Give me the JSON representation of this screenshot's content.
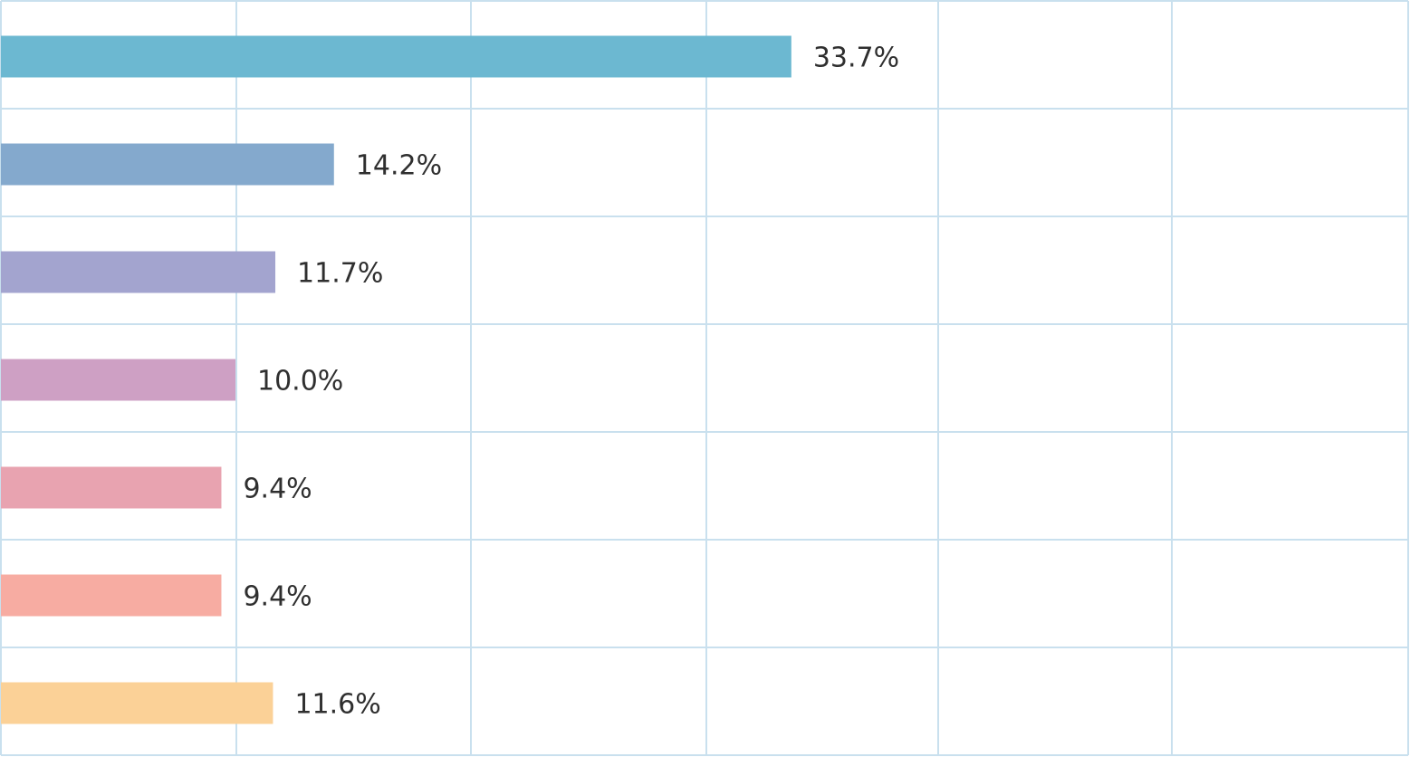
{
  "chart_data": {
    "type": "bar",
    "orientation": "horizontal",
    "categories": [
      "",
      "",
      "",
      "",
      "",
      "",
      ""
    ],
    "values": [
      33.7,
      14.2,
      11.7,
      10.0,
      9.4,
      9.4,
      11.6
    ],
    "labels": [
      "33.7%",
      "14.2%",
      "11.7%",
      "10.0%",
      "9.4%",
      "9.4%",
      "11.6%"
    ],
    "colors": [
      "#6cb8d1",
      "#84a9cd",
      "#a3a4cf",
      "#cea0c4",
      "#e8a3b0",
      "#f7aca2",
      "#fbd197"
    ],
    "xlim": [
      0,
      60
    ],
    "x_gridline_step": 10,
    "grid": true,
    "grid_color": "#c9e0ee",
    "title": "",
    "xlabel": "",
    "ylabel": ""
  }
}
